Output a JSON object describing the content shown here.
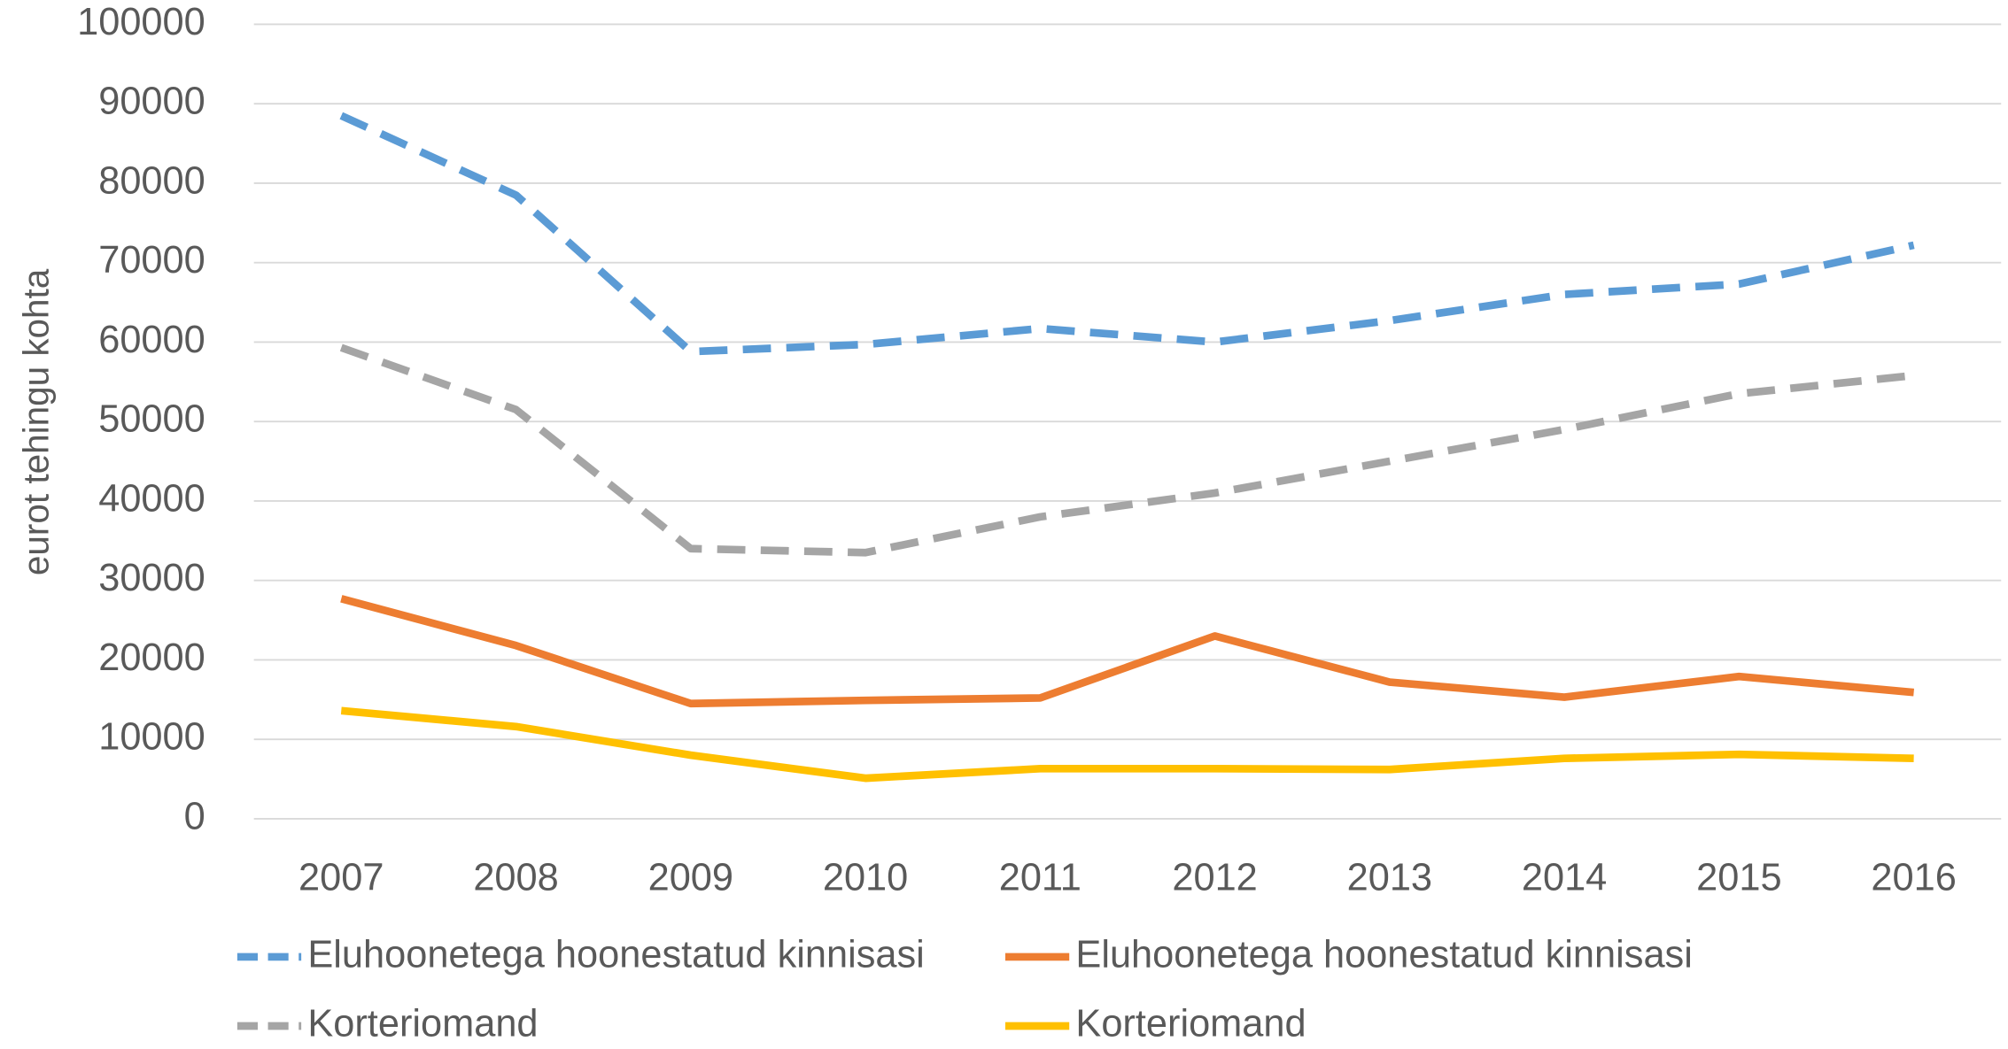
{
  "chart_data": {
    "type": "line",
    "y_label": "eurot tehingu kohta",
    "categories": [
      "2007",
      "2008",
      "2009",
      "2010",
      "2011",
      "2012",
      "2013",
      "2014",
      "2015",
      "2016"
    ],
    "series": [
      {
        "name": "Eluhoonetega hoonestatud kinnisasi",
        "color": "#5b9bd5",
        "dashed": true,
        "values": [
          88500,
          78500,
          58800,
          59700,
          61700,
          60000,
          62700,
          66000,
          67300,
          72200
        ]
      },
      {
        "name": "Eluhoonetega hoonestatud kinnisasi",
        "color": "#ed7d31",
        "dashed": false,
        "values": [
          27700,
          21800,
          14500,
          14900,
          15200,
          23000,
          17200,
          15300,
          17900,
          15900
        ]
      },
      {
        "name": "Korteriomand",
        "color": "#a5a5a5",
        "dashed": true,
        "values": [
          59300,
          51500,
          34000,
          33500,
          38000,
          41000,
          45000,
          49000,
          53500,
          55800
        ]
      },
      {
        "name": "Korteriomand",
        "color": "#ffc000",
        "dashed": false,
        "values": [
          13600,
          11600,
          8000,
          5100,
          6300,
          6300,
          6200,
          7600,
          8100,
          7600
        ]
      }
    ],
    "ylim": [
      0,
      100000
    ],
    "yticks": [
      0,
      10000,
      20000,
      30000,
      40000,
      50000,
      60000,
      70000,
      80000,
      90000,
      100000
    ],
    "grid": true,
    "legend": "bottom"
  }
}
